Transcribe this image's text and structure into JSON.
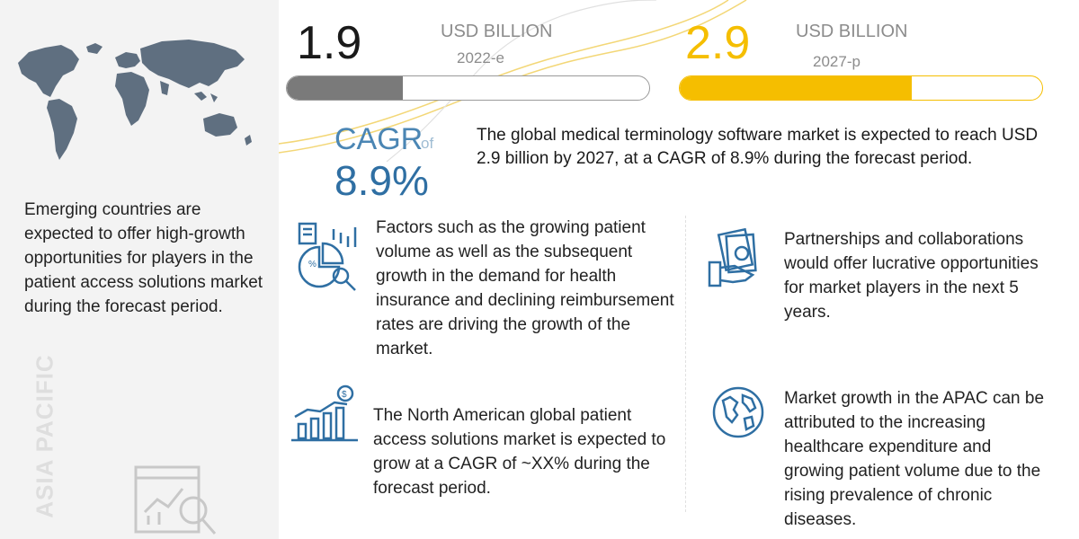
{
  "market": {
    "current": {
      "value": "1.9",
      "unit": "USD BILLION",
      "year": "2022-e",
      "bar_fill_fraction": 0.32
    },
    "projected": {
      "value": "2.9",
      "unit": "USD BILLION",
      "year": "2027-p",
      "bar_fill_fraction": 0.64
    }
  },
  "cagr": {
    "label": "CAGR",
    "of": "of",
    "value": "8.9%"
  },
  "summary": "The global medical terminology software market is expected to reach USD 2.9 billion by 2027, at a CAGR of 8.9% during the forecast period.",
  "left_panel": {
    "text": "Emerging countries are expected to offer high-growth opportunities for players in the patient access solutions market during the forecast period.",
    "region": "ASIA PACIFIC"
  },
  "points": [
    {
      "text": "Factors such as the growing patient volume as well as the subsequent growth in the demand for health insurance and declining reimbursement rates are driving the growth of the market.",
      "icon": "pie-chart-analysis-icon"
    },
    {
      "text": "The North American global patient access solutions market is expected to grow at a CAGR of ~XX% during the forecast period.",
      "icon": "growth-chart-icon"
    },
    {
      "text": "Partnerships and collaborations would offer lucrative opportunities for market players in the next 5 years.",
      "icon": "money-handshake-icon"
    },
    {
      "text": "Market growth in the APAC can be attributed to the increasing healthcare expenditure and growing patient volume due to the rising prevalence of chronic diseases.",
      "icon": "globe-icon"
    }
  ],
  "colors": {
    "accent_yellow": "#f5be00",
    "accent_blue": "#2f6fa3",
    "map_gray": "#5f6f80",
    "bar_gray": "#7a7a7a"
  }
}
